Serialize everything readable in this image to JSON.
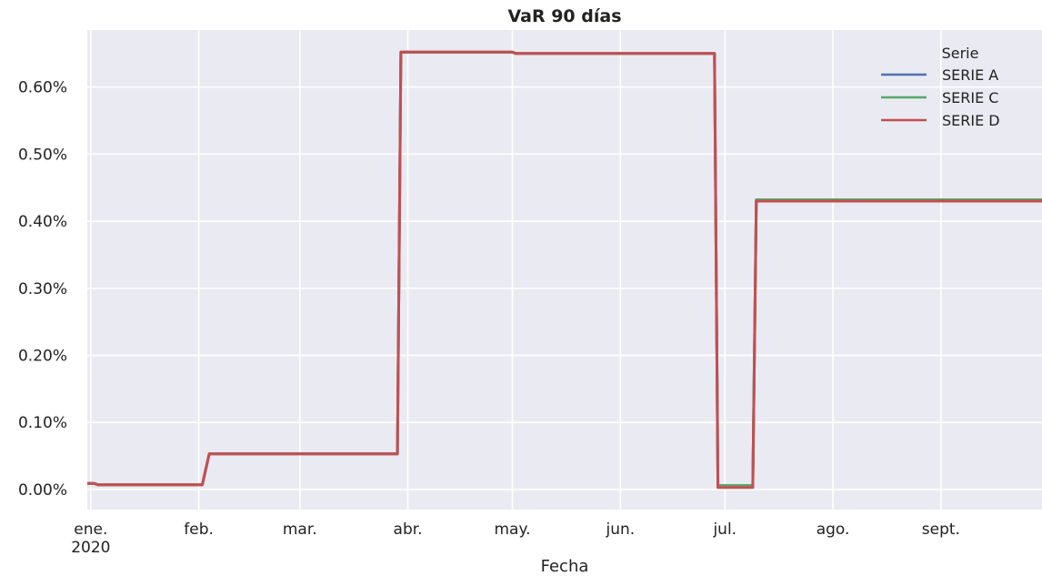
{
  "chart_data": {
    "type": "line",
    "title": "VaR 90 días",
    "xlabel": "Fecha",
    "ylabel": "",
    "x_tick_labels": [
      {
        "date": "2020-01-01",
        "label": "ene.",
        "sublabel": "2020"
      },
      {
        "date": "2020-02-01",
        "label": "feb.",
        "sublabel": ""
      },
      {
        "date": "2020-03-01",
        "label": "mar.",
        "sublabel": ""
      },
      {
        "date": "2020-04-01",
        "label": "abr.",
        "sublabel": ""
      },
      {
        "date": "2020-05-01",
        "label": "may.",
        "sublabel": ""
      },
      {
        "date": "2020-06-01",
        "label": "jun.",
        "sublabel": ""
      },
      {
        "date": "2020-07-01",
        "label": "jul.",
        "sublabel": ""
      },
      {
        "date": "2020-08-01",
        "label": "ago.",
        "sublabel": ""
      },
      {
        "date": "2020-09-01",
        "label": "sept.",
        "sublabel": ""
      }
    ],
    "y_ticks": [
      0.0,
      0.1,
      0.2,
      0.3,
      0.4,
      0.5,
      0.6
    ],
    "y_tick_format": "percent_2dp",
    "xlim": [
      "2019-12-31",
      "2020-09-30"
    ],
    "ylim": [
      -0.03,
      0.685
    ],
    "grid": true,
    "legend": {
      "title": "Serie",
      "placement": "top-right"
    },
    "series": [
      {
        "name": "SERIE A",
        "color": "#4c72b0",
        "points": [
          [
            "2019-12-31",
            0.009
          ],
          [
            "2020-01-02",
            0.009
          ],
          [
            "2020-01-03",
            0.007
          ],
          [
            "2020-02-02",
            0.007
          ],
          [
            "2020-02-04",
            0.053
          ],
          [
            "2020-03-29",
            0.053
          ],
          [
            "2020-03-30",
            0.652
          ],
          [
            "2020-05-01",
            0.652
          ],
          [
            "2020-05-02",
            0.65
          ],
          [
            "2020-06-28",
            0.65
          ],
          [
            "2020-06-29",
            0.004
          ],
          [
            "2020-07-09",
            0.004
          ],
          [
            "2020-07-10",
            0.431
          ],
          [
            "2020-09-30",
            0.431
          ]
        ]
      },
      {
        "name": "SERIE C",
        "color": "#55a868",
        "points": [
          [
            "2019-12-31",
            0.009
          ],
          [
            "2020-01-02",
            0.009
          ],
          [
            "2020-01-03",
            0.007
          ],
          [
            "2020-02-02",
            0.007
          ],
          [
            "2020-02-04",
            0.053
          ],
          [
            "2020-03-29",
            0.053
          ],
          [
            "2020-03-30",
            0.652
          ],
          [
            "2020-05-01",
            0.652
          ],
          [
            "2020-05-02",
            0.65
          ],
          [
            "2020-06-28",
            0.65
          ],
          [
            "2020-06-29",
            0.006
          ],
          [
            "2020-07-09",
            0.006
          ],
          [
            "2020-07-10",
            0.432
          ],
          [
            "2020-09-30",
            0.432
          ]
        ]
      },
      {
        "name": "SERIE D",
        "color": "#c44e52",
        "points": [
          [
            "2019-12-31",
            0.009
          ],
          [
            "2020-01-02",
            0.009
          ],
          [
            "2020-01-03",
            0.007
          ],
          [
            "2020-02-02",
            0.007
          ],
          [
            "2020-02-04",
            0.053
          ],
          [
            "2020-03-29",
            0.053
          ],
          [
            "2020-03-30",
            0.652
          ],
          [
            "2020-05-01",
            0.652
          ],
          [
            "2020-05-02",
            0.65
          ],
          [
            "2020-06-28",
            0.65
          ],
          [
            "2020-06-29",
            0.003
          ],
          [
            "2020-07-09",
            0.003
          ],
          [
            "2020-07-10",
            0.43
          ],
          [
            "2020-09-30",
            0.43
          ]
        ]
      }
    ]
  },
  "colors": {
    "plot_background": "#eaeaf2",
    "grid": "#ffffff"
  }
}
